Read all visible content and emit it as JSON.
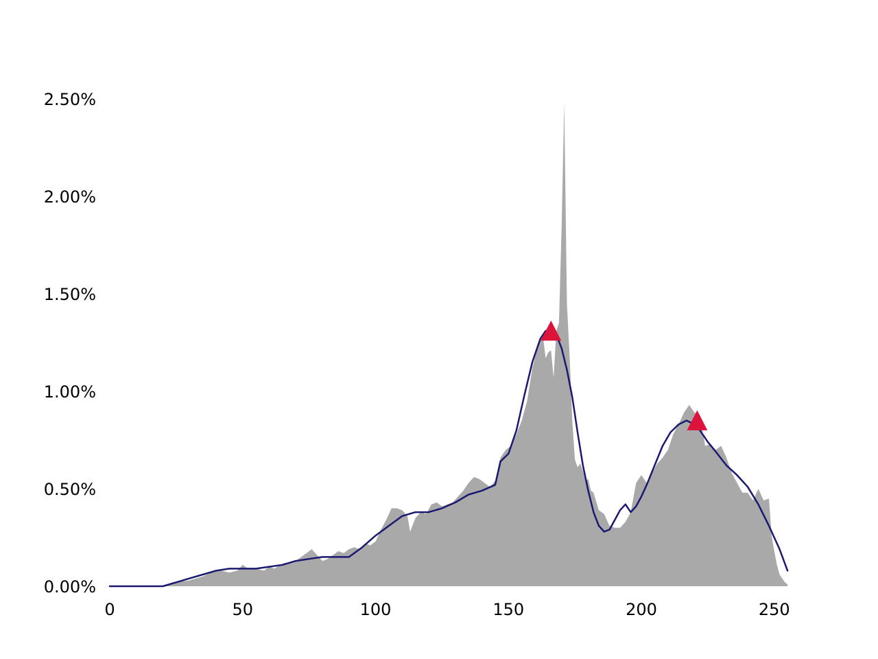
{
  "chart_data": {
    "type": "area",
    "xlim": [
      0,
      256
    ],
    "ylim": [
      0,
      0.025
    ],
    "xticks": [
      0,
      50,
      100,
      150,
      200,
      250
    ],
    "xtick_labels": [
      "0",
      "50",
      "100",
      "150",
      "200",
      "250"
    ],
    "yticks": [
      0,
      0.005,
      0.01,
      0.015,
      0.02,
      0.025
    ],
    "ytick_labels": [
      "0.00%",
      "0.50%",
      "1.00%",
      "1.50%",
      "2.00%",
      "2.50%"
    ],
    "grid": false,
    "series": [
      {
        "kind": "histogram-area",
        "color": "#a9a9a9",
        "x": [
          0,
          20,
          25,
          30,
          35,
          38,
          40,
          42,
          45,
          48,
          50,
          52,
          55,
          58,
          60,
          62,
          64,
          66,
          68,
          70,
          72,
          74,
          76,
          78,
          80,
          82,
          84,
          86,
          88,
          90,
          92,
          94,
          96,
          98,
          100,
          102,
          104,
          106,
          108,
          110,
          112,
          113,
          115,
          117,
          119,
          121,
          123,
          125,
          127,
          129,
          131,
          133,
          135,
          137,
          139,
          141,
          143,
          145,
          147,
          149,
          151,
          153,
          155,
          157,
          159,
          161,
          162,
          163,
          164,
          165,
          166,
          167,
          168,
          169,
          170,
          171,
          172,
          173,
          174,
          175,
          176,
          177,
          178,
          179,
          180,
          181,
          182,
          184,
          186,
          188,
          190,
          192,
          194,
          196,
          198,
          200,
          202,
          204,
          206,
          208,
          210,
          212,
          214,
          216,
          218,
          220,
          222,
          224,
          226,
          228,
          230,
          232,
          234,
          236,
          238,
          240,
          242,
          244,
          246,
          248,
          249,
          250,
          251,
          252,
          253,
          254,
          255
        ],
        "y": [
          0.0,
          0.0,
          0.0002,
          0.0003,
          0.0005,
          0.0007,
          0.0008,
          0.0008,
          0.0007,
          0.0008,
          0.0011,
          0.0009,
          0.0009,
          0.0008,
          0.001,
          0.0009,
          0.0011,
          0.0012,
          0.0012,
          0.0013,
          0.0015,
          0.0017,
          0.0019,
          0.0016,
          0.0013,
          0.0014,
          0.0016,
          0.0018,
          0.0017,
          0.0019,
          0.002,
          0.0019,
          0.0022,
          0.0021,
          0.0023,
          0.0029,
          0.0034,
          0.004,
          0.004,
          0.0039,
          0.0036,
          0.0028,
          0.0035,
          0.0038,
          0.0037,
          0.0042,
          0.0043,
          0.0041,
          0.0042,
          0.0043,
          0.0046,
          0.0049,
          0.0053,
          0.0056,
          0.0055,
          0.0053,
          0.0051,
          0.0054,
          0.0066,
          0.007,
          0.0072,
          0.0078,
          0.0085,
          0.0095,
          0.0112,
          0.0123,
          0.0127,
          0.0128,
          0.0117,
          0.012,
          0.0121,
          0.0107,
          0.0131,
          0.0135,
          0.0185,
          0.0248,
          0.0145,
          0.0118,
          0.0085,
          0.0065,
          0.0061,
          0.0063,
          0.0059,
          0.0054,
          0.0055,
          0.0049,
          0.0048,
          0.0039,
          0.0037,
          0.0031,
          0.003,
          0.003,
          0.0033,
          0.0038,
          0.0053,
          0.0057,
          0.0053,
          0.0058,
          0.0063,
          0.0066,
          0.007,
          0.0078,
          0.0083,
          0.0089,
          0.0093,
          0.0089,
          0.0088,
          0.0072,
          0.0073,
          0.007,
          0.0072,
          0.0066,
          0.0058,
          0.0053,
          0.0048,
          0.0048,
          0.0044,
          0.005,
          0.0044,
          0.0045,
          0.0026,
          0.0018,
          0.0011,
          0.0006,
          0.0004,
          0.0002,
          0.0001
        ]
      },
      {
        "kind": "smoothed-line",
        "color": "#191970",
        "x": [
          0,
          10,
          20,
          25,
          30,
          35,
          40,
          45,
          50,
          55,
          60,
          65,
          70,
          75,
          80,
          85,
          90,
          95,
          100,
          105,
          110,
          115,
          120,
          125,
          130,
          135,
          140,
          145,
          147,
          150,
          153,
          156,
          159,
          162,
          164,
          166,
          168,
          170,
          172,
          174,
          176,
          178,
          180,
          182,
          184,
          186,
          188,
          190,
          192,
          194,
          196,
          198,
          200,
          202,
          205,
          208,
          211,
          214,
          217,
          220,
          222,
          225,
          228,
          232,
          236,
          240,
          244,
          248,
          252,
          255
        ],
        "y": [
          0.0,
          0.0,
          0.0,
          0.0002,
          0.0004,
          0.0006,
          0.0008,
          0.0009,
          0.0009,
          0.0009,
          0.001,
          0.0011,
          0.0013,
          0.0014,
          0.0015,
          0.0015,
          0.0015,
          0.002,
          0.0026,
          0.0031,
          0.0036,
          0.0038,
          0.0038,
          0.004,
          0.0043,
          0.0047,
          0.0049,
          0.0052,
          0.0064,
          0.0068,
          0.008,
          0.0098,
          0.0115,
          0.0127,
          0.0131,
          0.0132,
          0.0129,
          0.0122,
          0.0111,
          0.0097,
          0.0079,
          0.0062,
          0.0049,
          0.0038,
          0.0031,
          0.0028,
          0.0029,
          0.0034,
          0.0039,
          0.0042,
          0.0038,
          0.0041,
          0.0046,
          0.0052,
          0.0062,
          0.0072,
          0.0079,
          0.0083,
          0.0085,
          0.0083,
          0.008,
          0.0074,
          0.0069,
          0.0062,
          0.0057,
          0.0051,
          0.0042,
          0.0031,
          0.0019,
          0.0008
        ]
      },
      {
        "kind": "peak-markers",
        "color": "#dc143c",
        "marker": "triangle-up",
        "x": [
          166,
          221
        ],
        "y": [
          0.0131,
          0.0085
        ]
      }
    ]
  }
}
